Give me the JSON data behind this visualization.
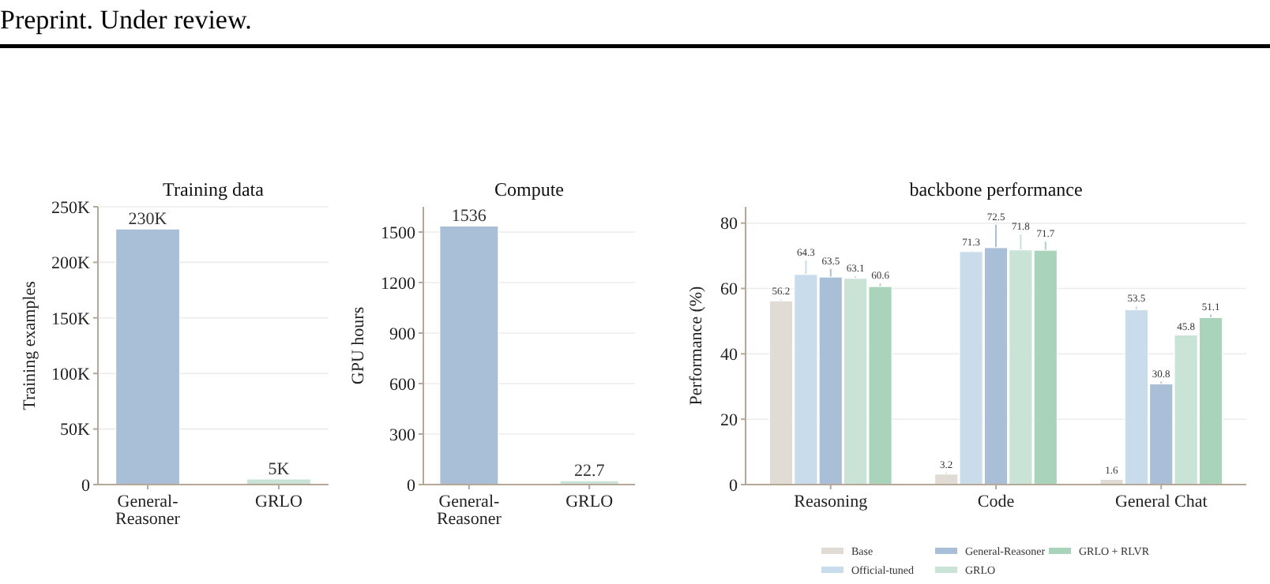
{
  "chart_data": [
    {
      "type": "bar",
      "title": "Training data",
      "ylabel": "Training examples",
      "annotations": [
        "Preprint. Under review."
      ],
      "categories": [
        "General-Reasoner",
        "GRLO"
      ],
      "values": [
        230000,
        5000
      ],
      "colors": [
        "#a9bfd7",
        "#c9e3d6"
      ],
      "value_labels": [
        "230K",
        "5K"
      ],
      "ylim": [
        0,
        250000
      ],
      "yticks": [
        {
          "value": 0,
          "label": "0"
        },
        {
          "value": 50000,
          "label": "50K"
        },
        {
          "value": 100000,
          "label": "100K"
        },
        {
          "value": 150000,
          "label": "150K"
        },
        {
          "value": 200000,
          "label": "200K"
        },
        {
          "value": 250000,
          "label": "250K"
        }
      ],
      "grid": "y",
      "legend": false
    },
    {
      "type": "bar",
      "title": "Compute",
      "ylabel": "GPU hours",
      "categories": [
        "General-Reasoner",
        "GRLO"
      ],
      "values": [
        1536,
        22.7
      ],
      "colors": [
        "#a9bfd7",
        "#c9e3d6"
      ],
      "data_labels": true,
      "ylim": [
        0,
        1650
      ],
      "yticks": [
        0,
        300,
        600,
        900,
        1200,
        1500
      ],
      "grid": "y",
      "legend": false
    },
    {
      "type": "bar",
      "title": "backbone performance",
      "ylabel": "Performance (%)",
      "categories": [
        "Reasoning",
        "Code",
        "General Chat"
      ],
      "series": [
        {
          "name": "Base",
          "color": "#e0dbd5",
          "values": [
            56.2,
            3.2,
            1.6
          ],
          "errors": [
            0.5,
            0.5,
            0.3
          ]
        },
        {
          "name": "Official-tuned",
          "color": "#c9dceb",
          "values": [
            64.3,
            71.3,
            53.5
          ],
          "errors": [
            4.3,
            0.3,
            1
          ]
        },
        {
          "name": "General-Reasoner",
          "color": "#a9bfd7",
          "values": [
            63.5,
            72.5,
            30.8
          ],
          "errors": [
            2.5,
            7,
            0.7
          ]
        },
        {
          "name": "GRLO",
          "color": "#c9e3d6",
          "values": [
            63.1,
            71.8,
            45.8
          ],
          "errors": [
            0.7,
            4.7,
            0.2
          ]
        },
        {
          "name": "GRLO + RLVR",
          "color": "#a9d3ba",
          "values": [
            60.6,
            71.7,
            51.1
          ],
          "errors": [
            0.9,
            2.6,
            0.9
          ]
        }
      ],
      "data_labels": true,
      "ylim": [
        0,
        85
      ],
      "yticks": [
        0,
        20,
        40,
        60,
        80
      ],
      "grid": "y",
      "legend": "bottom"
    }
  ]
}
